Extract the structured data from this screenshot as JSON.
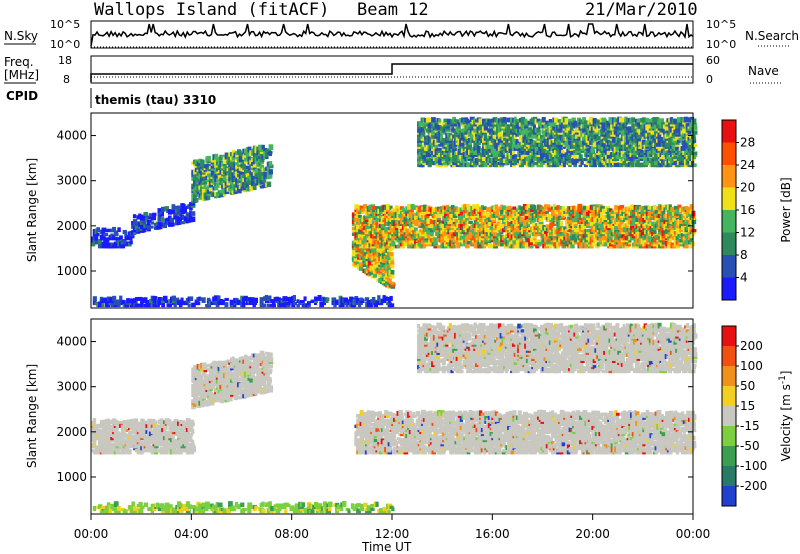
{
  "header": {
    "station": "Wallops Island (fitACF)",
    "beam": "Beam 12",
    "date": "21/Mar/2010"
  },
  "top_panels": {
    "nsky_label": "N.Sky",
    "nsky_ticks": [
      "10^5",
      "10^0"
    ],
    "nsearch_label": "N.Search",
    "nsearch_ticks": [
      "10^5",
      "10^0"
    ],
    "freq_label": "Freq.",
    "freq_unit": "[MHz]",
    "freq_ticks": [
      "18",
      "8"
    ],
    "nave_label": "Nave",
    "nave_ticks": [
      "60",
      "0"
    ],
    "cpid_label": "CPID",
    "cpid_value": "themis (tau) 3310"
  },
  "xaxis": {
    "label": "Time UT",
    "ticks": [
      "00:00",
      "04:00",
      "08:00",
      "12:00",
      "16:00",
      "20:00",
      "00:00"
    ],
    "range_hours": [
      0,
      24
    ]
  },
  "chart_data": [
    {
      "type": "heatmap",
      "quantity": "Power",
      "ylabel": "Slant Range [km]",
      "ylim": [
        180,
        4500
      ],
      "yticks": [
        "1000",
        "2000",
        "3000",
        "4000"
      ],
      "colorbar_label": "Power [dB]",
      "colorbar_ticks": [
        "28",
        "24",
        "20",
        "16",
        "12",
        "8",
        "4"
      ],
      "colors": [
        "#1a1aff",
        "#2850b4",
        "#2e8a5a",
        "#45b560",
        "#f0e018",
        "#ff9414",
        "#ff5000",
        "#e81010"
      ],
      "regions": [
        {
          "name": "early E-band",
          "t": [
            0.0,
            1.6
          ],
          "r": [
            1500,
            1900
          ],
          "level": "low"
        },
        {
          "name": "rising echo",
          "t": [
            1.6,
            4.0
          ],
          "r": [
            1800,
            2200
          ],
          "level": "low"
        },
        {
          "name": "pre-midnight F echo",
          "t": [
            4.0,
            7.1
          ],
          "r": [
            2700,
            3600
          ],
          "level": "medium"
        },
        {
          "name": "near-range returns",
          "t": [
            0.0,
            12.0
          ],
          "r": [
            200,
            350
          ],
          "level": "low"
        },
        {
          "name": "post-11UT dropping echo",
          "t": [
            10.4,
            12.0
          ],
          "r": [
            1100,
            2200
          ],
          "level": "high"
        },
        {
          "name": "main band",
          "t": [
            10.5,
            24.0
          ],
          "r": [
            1500,
            2400
          ],
          "level": "high"
        },
        {
          "name": "upper band",
          "t": [
            13.0,
            24.0
          ],
          "r": [
            3300,
            4300
          ],
          "level": "medium"
        }
      ]
    },
    {
      "type": "heatmap",
      "quantity": "Velocity",
      "ylabel": "Slant Range [km]",
      "ylim": [
        180,
        4500
      ],
      "yticks": [
        "1000",
        "2000",
        "3000",
        "4000"
      ],
      "colorbar_label": "Velocity [m s^-1]",
      "colorbar_ticks": [
        "200",
        "100",
        "50",
        "15",
        "-15",
        "-50",
        "-100",
        "-200"
      ],
      "colors": [
        "#2040d0",
        "#2a7a6a",
        "#3aa050",
        "#7cd040",
        "#c8c8c0",
        "#f0d020",
        "#f09018",
        "#f05010",
        "#e81010"
      ],
      "regions": [
        {
          "name": "early band",
          "t": [
            0.0,
            4.0
          ],
          "r": [
            1500,
            2200
          ],
          "level": "gray"
        },
        {
          "name": "pre-midnight echo",
          "t": [
            4.0,
            7.1
          ],
          "r": [
            2700,
            3600
          ],
          "level": "gray"
        },
        {
          "name": "main band",
          "t": [
            10.5,
            24.0
          ],
          "r": [
            1500,
            2400
          ],
          "level": "gray"
        },
        {
          "name": "upper band",
          "t": [
            13.0,
            24.0
          ],
          "r": [
            3300,
            4300
          ],
          "level": "gray"
        },
        {
          "name": "near-range returns",
          "t": [
            0.0,
            12.0
          ],
          "r": [
            200,
            350
          ],
          "level": "green"
        }
      ]
    }
  ]
}
